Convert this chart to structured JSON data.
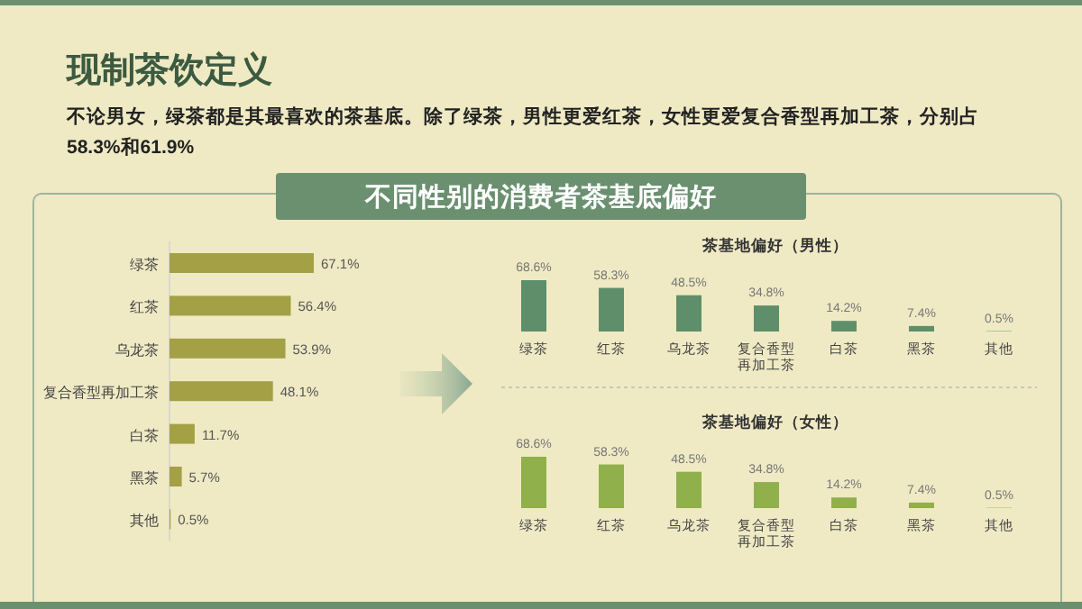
{
  "chart_data": [
    {
      "type": "other",
      "title": "现制茶饮定义",
      "subtitle": "不论男女，绿茶都是其最喜欢的茶基底。除了绿茶，男性更爱红茶，女性更爱复合香型再加工茶，分别占58.3%和61.9%",
      "annotations": [
        "不同性别的消费者茶基底偏好"
      ]
    },
    {
      "type": "bar",
      "orientation": "horizontal",
      "categories": [
        "绿茶",
        "红茶",
        "乌龙茶",
        "复合香型再加工茶",
        "白茶",
        "黑茶",
        "其他"
      ],
      "values": [
        67.1,
        56.4,
        53.9,
        48.1,
        11.7,
        5.7,
        0.5
      ],
      "value_labels": [
        "67.1%",
        "56.4%",
        "53.9%",
        "48.1%",
        "11.7%",
        "5.7%",
        "0.5%"
      ],
      "color": "#a3a046"
    },
    {
      "type": "bar",
      "title": "茶基地偏好（男性）",
      "categories": [
        "绿茶",
        "红茶",
        "乌龙茶",
        "复合香型再加工茶",
        "白茶",
        "黑茶",
        "其他"
      ],
      "values": [
        68.6,
        58.3,
        48.5,
        34.8,
        14.2,
        7.4,
        0.5
      ],
      "value_labels": [
        "68.6%",
        "58.3%",
        "48.5%",
        "34.8%",
        "14.2%",
        "7.4%",
        "0.5%"
      ],
      "color": "#5e8f6a"
    },
    {
      "type": "bar",
      "title": "茶基地偏好（女性）",
      "categories": [
        "绿茶",
        "红茶",
        "乌龙茶",
        "复合香型再加工茶",
        "白茶",
        "黑茶",
        "其他"
      ],
      "values": [
        68.6,
        58.3,
        48.5,
        34.8,
        14.2,
        7.4,
        0.5
      ],
      "value_labels": [
        "68.6%",
        "58.3%",
        "48.5%",
        "34.8%",
        "14.2%",
        "7.4%",
        "0.5%"
      ],
      "color": "#8fb04a"
    }
  ]
}
